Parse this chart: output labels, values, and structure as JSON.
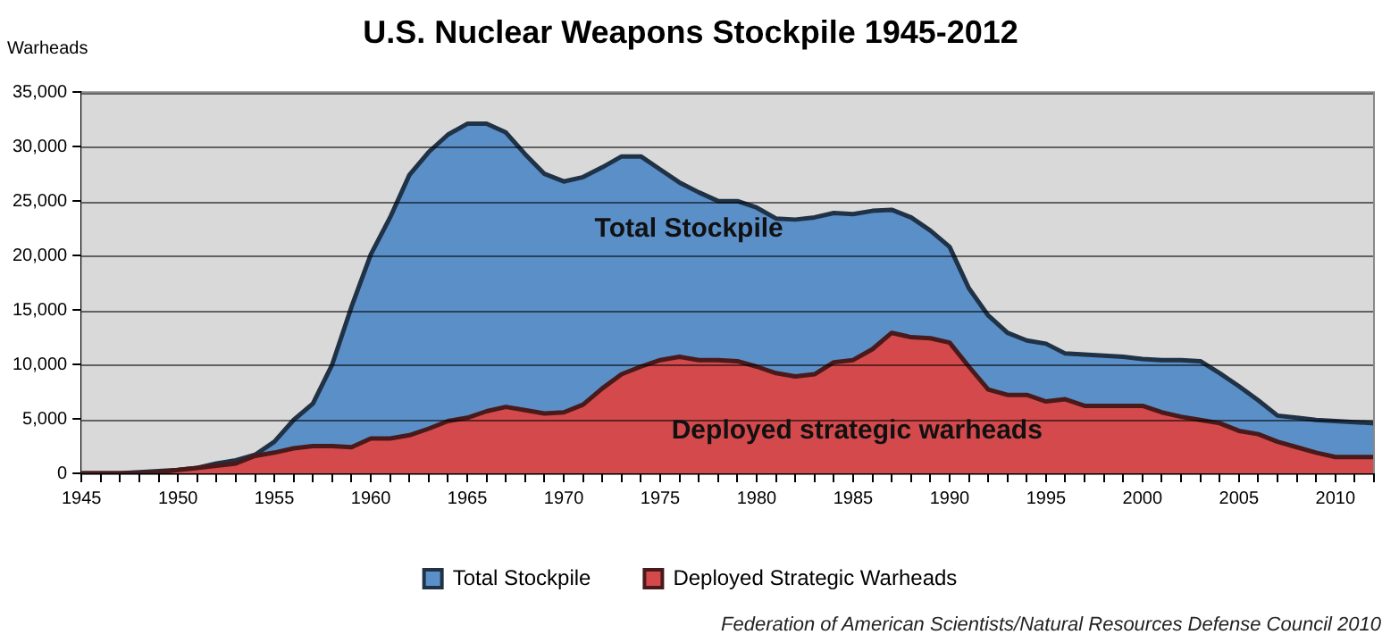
{
  "chart_data": {
    "type": "area",
    "title": "U.S. Nuclear Weapons Stockpile 1945-2012",
    "ylabel": "Warheads",
    "x": [
      1945,
      1946,
      1947,
      1948,
      1949,
      1950,
      1951,
      1952,
      1953,
      1954,
      1955,
      1956,
      1957,
      1958,
      1959,
      1960,
      1961,
      1962,
      1963,
      1964,
      1965,
      1966,
      1967,
      1968,
      1969,
      1970,
      1971,
      1972,
      1973,
      1974,
      1975,
      1976,
      1977,
      1978,
      1979,
      1980,
      1981,
      1982,
      1983,
      1984,
      1985,
      1986,
      1987,
      1988,
      1989,
      1990,
      1991,
      1992,
      1993,
      1994,
      1995,
      1996,
      1997,
      1998,
      1999,
      2000,
      2001,
      2002,
      2003,
      2004,
      2005,
      2006,
      2007,
      2008,
      2009,
      2010,
      2011,
      2012
    ],
    "series": [
      {
        "name": "Total Stockpile",
        "color": "#5b8fc8",
        "values": [
          0,
          0,
          0,
          100,
          200,
          300,
          500,
          900,
          1200,
          1700,
          2900,
          4900,
          6400,
          10000,
          15300,
          20100,
          23500,
          27400,
          29500,
          31100,
          32100,
          32100,
          31300,
          29300,
          27500,
          26800,
          27200,
          28100,
          29100,
          29100,
          27900,
          26700,
          25800,
          25000,
          25000,
          24400,
          23400,
          23300,
          23500,
          23900,
          23800,
          24100,
          24200,
          23500,
          22300,
          20800,
          17000,
          14500,
          12900,
          12200,
          11900,
          11000,
          10900,
          10800,
          10700,
          10500,
          10400,
          10400,
          10300,
          9200,
          8000,
          6700,
          5300,
          5100,
          4900,
          4800,
          4700,
          4600
        ]
      },
      {
        "name": "Deployed Strategic Warheads",
        "color": "#d44a4c",
        "values": [
          0,
          0,
          0,
          0,
          100,
          300,
          500,
          700,
          900,
          1600,
          1900,
          2300,
          2500,
          2500,
          2400,
          3200,
          3200,
          3500,
          4100,
          4800,
          5100,
          5700,
          6100,
          5800,
          5500,
          5600,
          6300,
          7800,
          9100,
          9800,
          10400,
          10700,
          10400,
          10400,
          10300,
          9800,
          9200,
          8900,
          9100,
          10200,
          10400,
          11400,
          12900,
          12500,
          12400,
          12000,
          9800,
          7700,
          7200,
          7200,
          6600,
          6800,
          6200,
          6200,
          6200,
          6200,
          5600,
          5200,
          4900,
          4600,
          3900,
          3600,
          2900,
          2400,
          1900,
          1500,
          1500,
          1500
        ]
      }
    ],
    "xlim": [
      1945,
      2012
    ],
    "xticks": [
      1945,
      {
        "value": 1946,
        "label": null
      },
      {
        "value": 1947,
        "label": null
      },
      {
        "value": 1948,
        "label": null
      },
      {
        "value": 1949,
        "label": null
      },
      1950,
      {
        "value": 1951,
        "label": null
      },
      {
        "value": 1952,
        "label": null
      },
      {
        "value": 1953,
        "label": null
      },
      {
        "value": 1954,
        "label": null
      },
      1955,
      {
        "value": 1956,
        "label": null
      },
      {
        "value": 1957,
        "label": null
      },
      {
        "value": 1958,
        "label": null
      },
      {
        "value": 1959,
        "label": null
      },
      1960,
      {
        "value": 1961,
        "label": null
      },
      {
        "value": 1962,
        "label": null
      },
      {
        "value": 1963,
        "label": null
      },
      {
        "value": 1964,
        "label": null
      },
      1965,
      {
        "value": 1966,
        "label": null
      },
      {
        "value": 1967,
        "label": null
      },
      {
        "value": 1968,
        "label": null
      },
      {
        "value": 1969,
        "label": null
      },
      1970,
      {
        "value": 1971,
        "label": null
      },
      {
        "value": 1972,
        "label": null
      },
      {
        "value": 1973,
        "label": null
      },
      {
        "value": 1974,
        "label": null
      },
      1975,
      {
        "value": 1976,
        "label": null
      },
      {
        "value": 1977,
        "label": null
      },
      {
        "value": 1978,
        "label": null
      },
      {
        "value": 1979,
        "label": null
      },
      1980,
      {
        "value": 1981,
        "label": null
      },
      {
        "value": 1982,
        "label": null
      },
      {
        "value": 1983,
        "label": null
      },
      {
        "value": 1984,
        "label": null
      },
      1985,
      {
        "value": 1986,
        "label": null
      },
      {
        "value": 1987,
        "label": null
      },
      {
        "value": 1988,
        "label": null
      },
      {
        "value": 1989,
        "label": null
      },
      1990,
      {
        "value": 1991,
        "label": null
      },
      {
        "value": 1992,
        "label": null
      },
      {
        "value": 1993,
        "label": null
      },
      {
        "value": 1994,
        "label": null
      },
      1995,
      {
        "value": 1996,
        "label": null
      },
      {
        "value": 1997,
        "label": null
      },
      {
        "value": 1998,
        "label": null
      },
      {
        "value": 1999,
        "label": null
      },
      2000,
      {
        "value": 2001,
        "label": null
      },
      {
        "value": 2002,
        "label": null
      },
      {
        "value": 2003,
        "label": null
      },
      {
        "value": 2004,
        "label": null
      },
      2005,
      {
        "value": 2006,
        "label": null
      },
      {
        "value": 2007,
        "label": null
      },
      {
        "value": 2008,
        "label": null
      },
      {
        "value": 2009,
        "label": null
      },
      2010,
      {
        "value": 2011,
        "label": null
      },
      {
        "value": 2012,
        "label": null
      }
    ],
    "ylim": [
      0,
      35000
    ],
    "yticks": [
      {
        "value": 0,
        "label": "0"
      },
      {
        "value": 5000,
        "label": "5,000"
      },
      {
        "value": 10000,
        "label": "10,000"
      },
      {
        "value": 15000,
        "label": "15,000"
      },
      {
        "value": 20000,
        "label": "20,000"
      },
      {
        "value": 25000,
        "label": "25,000"
      },
      {
        "value": 30000,
        "label": "30,000"
      },
      {
        "value": 35000,
        "label": "35,000"
      }
    ],
    "grid": "y",
    "legend": "bottom",
    "annotations": [
      "Total Stockpile",
      "Deployed strategic warheads",
      "Federation of American Scientists/Natural Resources Defense Council 2010"
    ]
  }
}
